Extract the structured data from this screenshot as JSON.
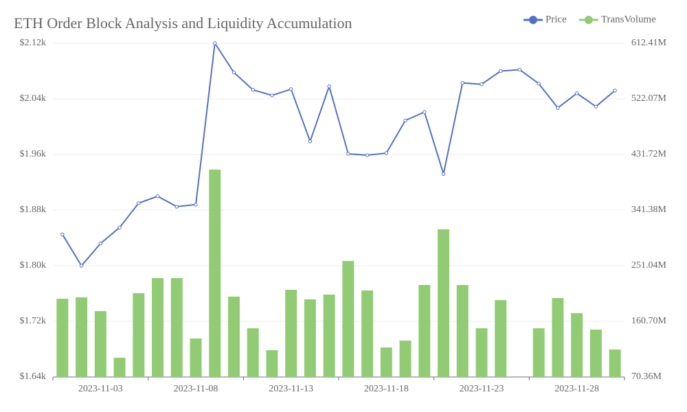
{
  "chart_data": {
    "type": "bar_line",
    "title": "ETH Order Block Analysis and Liquidity Accumulation",
    "categories": [
      null,
      null,
      "2023-11-03",
      null,
      null,
      null,
      null,
      "2023-11-08",
      null,
      null,
      null,
      null,
      "2023-11-13",
      null,
      null,
      null,
      null,
      "2023-11-18",
      null,
      null,
      null,
      null,
      "2023-11-23",
      null,
      null,
      null,
      null,
      "2023-11-28",
      null,
      null
    ],
    "series": [
      {
        "name": "Price",
        "type": "line",
        "color": "#5470c6",
        "axis": "y",
        "values": [
          1845,
          1800,
          1832,
          1855,
          1890,
          1900,
          1885,
          1888,
          2120,
          2078,
          2053,
          2045,
          2054,
          1979,
          2058,
          1961,
          1959,
          1962,
          2009,
          2021,
          1932,
          2063,
          2061,
          2080,
          2082,
          2062,
          2027,
          2048,
          2029,
          2052
        ]
      },
      {
        "name": "TransVolume",
        "type": "bar",
        "color": "#91cc75",
        "axis": "y2",
        "values": [
          197.5,
          199.7,
          177.4,
          101.6,
          206.4,
          231.0,
          231.0,
          132.8,
          407.2,
          200.9,
          149.5,
          113.9,
          212.0,
          196.4,
          204.2,
          258.8,
          210.9,
          118.3,
          129.5,
          219.8,
          310.2,
          219.8,
          149.5,
          195.3,
          null,
          149.5,
          198.6,
          174.1,
          147.3,
          115.0
        ]
      }
    ],
    "ylim": [
      1640,
      2120
    ],
    "yticks": [
      {
        "value": 1640,
        "label": "$1.64k"
      },
      {
        "value": 1720,
        "label": "$1.72k"
      },
      {
        "value": 1800,
        "label": "$1.80k"
      },
      {
        "value": 1880,
        "label": "$1.88k"
      },
      {
        "value": 1960,
        "label": "$1.96k"
      },
      {
        "value": 2040,
        "label": "$2.04k"
      },
      {
        "value": 2120,
        "label": "$2.12k"
      }
    ],
    "y2lim": [
      70.36,
      612.41
    ],
    "y2ticks": [
      {
        "value": 70.36,
        "label": "70.36M"
      },
      {
        "value": 160.7,
        "label": "160.70M"
      },
      {
        "value": 251.04,
        "label": "251.04M"
      },
      {
        "value": 341.38,
        "label": "341.38M"
      },
      {
        "value": 431.72,
        "label": "431.72M"
      },
      {
        "value": 522.07,
        "label": "522.07M"
      },
      {
        "value": 612.41,
        "label": "612.41M"
      }
    ],
    "grid": true,
    "legend": "top-right"
  }
}
